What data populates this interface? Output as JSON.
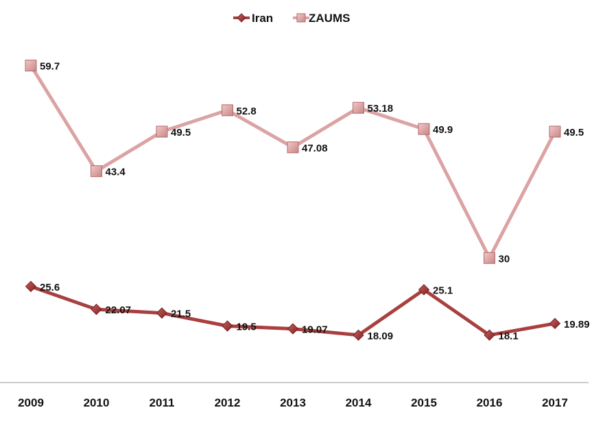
{
  "chart_data": {
    "type": "line",
    "title": "",
    "xlabel": "",
    "ylabel": "",
    "categories": [
      "2009",
      "2010",
      "2011",
      "2012",
      "2013",
      "2014",
      "2015",
      "2016",
      "2017"
    ],
    "ylim": [
      0,
      70
    ],
    "grid": false,
    "legend": "top-center",
    "series": [
      {
        "name": "Iran",
        "marker": "diamond",
        "color": "#a23a3a",
        "values": [
          25.6,
          22.07,
          21.5,
          19.5,
          19.07,
          18.09,
          25.1,
          18.1,
          19.89
        ],
        "labels": [
          "25.6",
          "22.07",
          "21.5",
          "19.5",
          "19.07",
          "18.09",
          "25.1",
          "18.1",
          "19.89"
        ]
      },
      {
        "name": "ZAUMS",
        "marker": "square",
        "color": "#d99c9c",
        "values": [
          59.7,
          43.4,
          49.5,
          52.8,
          47.08,
          53.18,
          49.9,
          30,
          49.5
        ],
        "labels": [
          "59.7",
          "43.4",
          "49.5",
          "52.8",
          "47.08",
          "53.18",
          "49.9",
          "30",
          "49.5"
        ]
      }
    ]
  }
}
